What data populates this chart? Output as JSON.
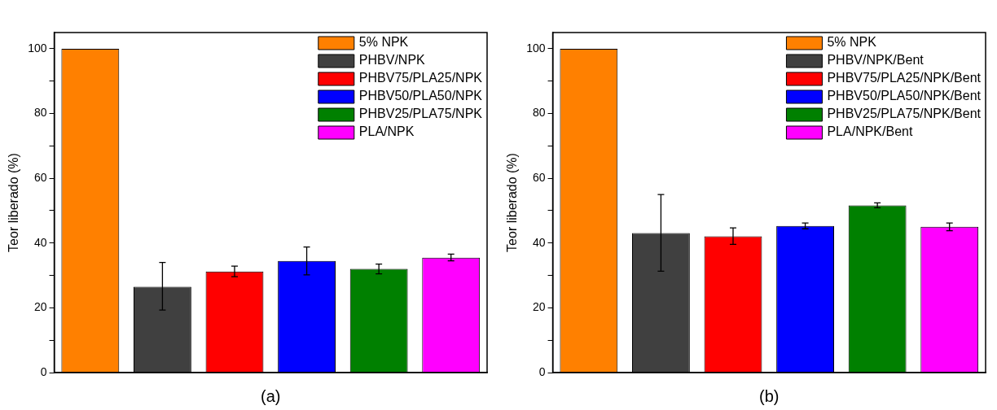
{
  "chart_data": [
    {
      "type": "bar",
      "xlabel": "(a)",
      "ylabel": "Teor liberado (%)",
      "categories": [
        null,
        null,
        null,
        null,
        null,
        null
      ],
      "series": [
        {
          "name": "5% NPK",
          "color": "#ff8000",
          "values": [
            100,
            null,
            null,
            null,
            null,
            null
          ]
        },
        {
          "name": "PHBV/NPK",
          "color": "#404040",
          "values": [
            null,
            26.5,
            null,
            null,
            null,
            null
          ],
          "errors": [
            null,
            [
              19.3,
              34.0
            ],
            null,
            null,
            null,
            null
          ]
        },
        {
          "name": "PHBV75/PLA25/NPK",
          "color": "#ff0000",
          "values": [
            null,
            null,
            31.2,
            null,
            null,
            null
          ],
          "errors": [
            null,
            null,
            [
              29.6,
              32.9
            ],
            null,
            null,
            null
          ]
        },
        {
          "name": "PHBV50/PLA50/NPK",
          "color": "#0000ff",
          "values": [
            null,
            null,
            null,
            34.5,
            null,
            null
          ],
          "errors": [
            null,
            null,
            null,
            [
              30.2,
              38.8
            ],
            null,
            null
          ]
        },
        {
          "name": "PHBV25/PLA75/NPK",
          "color": "#008000",
          "values": [
            null,
            null,
            null,
            null,
            32.0,
            null
          ],
          "errors": [
            null,
            null,
            null,
            null,
            [
              30.5,
              33.5
            ],
            null
          ]
        },
        {
          "name": "PLA/NPK",
          "color": "#ff00ff",
          "values": [
            null,
            null,
            null,
            null,
            null,
            35.5
          ],
          "errors": [
            null,
            null,
            null,
            null,
            null,
            [
              34.5,
              36.6
            ]
          ]
        }
      ],
      "ylim": [
        0,
        105
      ],
      "yticks": [
        0,
        {
          "value": 10,
          "label": null
        },
        20,
        {
          "value": 30,
          "label": null
        },
        40,
        {
          "value": 50,
          "label": null
        },
        60,
        {
          "value": 70,
          "label": null
        },
        80,
        {
          "value": 90,
          "label": null
        },
        100
      ],
      "grid": false,
      "legend": "top right",
      "tick_labels": "y"
    },
    {
      "type": "bar",
      "xlabel": "(b)",
      "ylabel": "Teor liberado (%)",
      "categories": [
        null,
        null,
        null,
        null,
        null,
        null
      ],
      "series": [
        {
          "name": "5% NPK",
          "color": "#ff8000",
          "values": [
            100,
            null,
            null,
            null,
            null,
            null
          ]
        },
        {
          "name": "PHBV/NPK/Bent",
          "color": "#404040",
          "values": [
            null,
            43.1,
            null,
            null,
            null,
            null
          ],
          "errors": [
            null,
            [
              31.3,
              55.0
            ],
            null,
            null,
            null,
            null
          ]
        },
        {
          "name": "PHBV75/PLA25/NPK/Bent",
          "color": "#ff0000",
          "values": [
            null,
            null,
            42.1,
            null,
            null,
            null
          ],
          "errors": [
            null,
            null,
            [
              39.6,
              44.7
            ],
            null,
            null,
            null
          ]
        },
        {
          "name": "PHBV50/PLA50/NPK/Bent",
          "color": "#0000ff",
          "values": [
            null,
            null,
            null,
            45.3,
            null,
            null
          ],
          "errors": [
            null,
            null,
            null,
            [
              44.4,
              46.2
            ],
            null,
            null
          ]
        },
        {
          "name": "PHBV25/PLA75/NPK/Bent",
          "color": "#008000",
          "values": [
            null,
            null,
            null,
            null,
            51.6,
            null
          ],
          "errors": [
            null,
            null,
            null,
            null,
            [
              50.9,
              52.4
            ],
            null
          ]
        },
        {
          "name": "PLA/NPK/Bent",
          "color": "#ff00ff",
          "values": [
            null,
            null,
            null,
            null,
            null,
            45.0
          ],
          "errors": [
            null,
            null,
            null,
            null,
            null,
            [
              43.8,
              46.2
            ]
          ]
        }
      ],
      "ylim": [
        0,
        105
      ],
      "yticks": [
        0,
        {
          "value": 10,
          "label": null
        },
        20,
        {
          "value": 30,
          "label": null
        },
        40,
        {
          "value": 50,
          "label": null
        },
        60,
        {
          "value": 70,
          "label": null
        },
        80,
        {
          "value": 90,
          "label": null
        },
        100
      ],
      "grid": false,
      "legend": "top right",
      "tick_labels": "y"
    }
  ]
}
